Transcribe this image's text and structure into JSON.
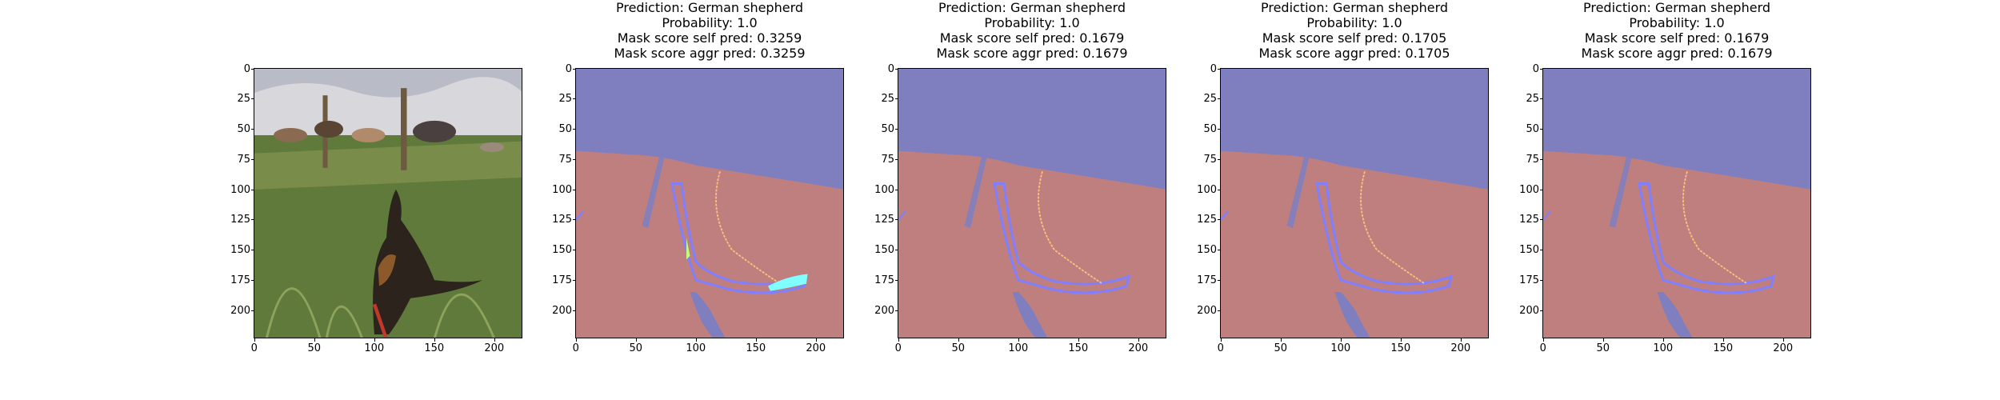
{
  "figure": {
    "axis": {
      "y_ticks": [
        "0",
        "25",
        "50",
        "75",
        "100",
        "125",
        "150",
        "175",
        "200"
      ],
      "x_ticks": [
        "0",
        "50",
        "100",
        "150",
        "200"
      ]
    },
    "colors": {
      "sky_mask": "#7f7fbf",
      "ground_mask": "#bf7f7f",
      "grass_photo": "#5f7a3a",
      "sky_photo": "#d8d8dc"
    },
    "panels": [
      {
        "name": "input-photo",
        "title": [],
        "content": "photo"
      },
      {
        "name": "mask-1",
        "title": [
          "Prediction: German shepherd",
          "Probability: 1.0",
          "Mask score self pred: 0.3259",
          "Mask score aggr pred: 0.3259"
        ],
        "content": "mask"
      },
      {
        "name": "mask-2",
        "title": [
          "Prediction: German shepherd",
          "Probability: 1.0",
          "Mask score self pred: 0.1679",
          "Mask score aggr pred: 0.1679"
        ],
        "content": "mask"
      },
      {
        "name": "mask-3",
        "title": [
          "Prediction: German shepherd",
          "Probability: 1.0",
          "Mask score self pred: 0.1705",
          "Mask score aggr pred: 0.1705"
        ],
        "content": "mask"
      },
      {
        "name": "mask-4",
        "title": [
          "Prediction: German shepherd",
          "Probability: 1.0",
          "Mask score self pred: 0.1679",
          "Mask score aggr pred: 0.1679"
        ],
        "content": "mask"
      }
    ]
  }
}
